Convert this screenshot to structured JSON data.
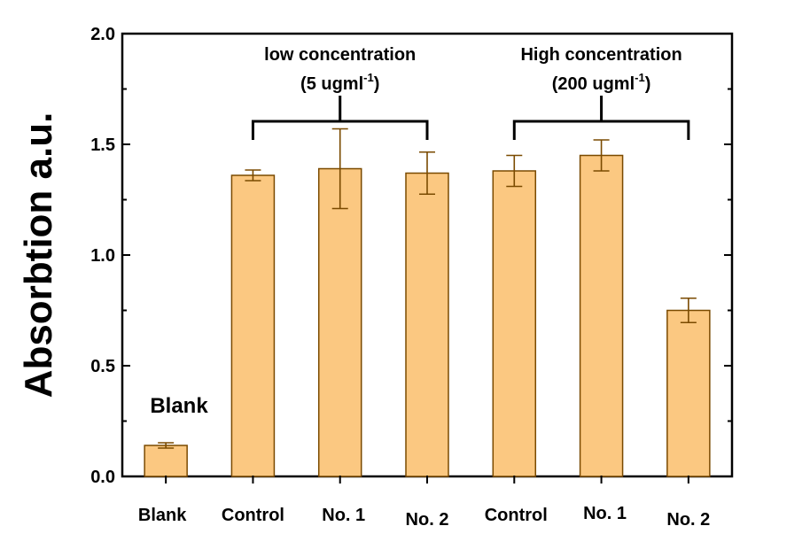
{
  "chart_data": {
    "type": "bar",
    "title": "",
    "xlabel": "",
    "ylabel": "Absorbtion a.u.",
    "ylim": [
      0,
      2.0
    ],
    "yticks": [
      "0.0",
      "0.5",
      "1.0",
      "1.5",
      "2.0"
    ],
    "grid": false,
    "legend": "none",
    "categories": [
      "Blank",
      "Control",
      "No. 1",
      "No. 2",
      "Control",
      "No. 1",
      "No. 2"
    ],
    "values": [
      0.14,
      1.36,
      1.39,
      1.37,
      1.38,
      1.45,
      0.75
    ],
    "errors": [
      0.012,
      0.024,
      0.18,
      0.095,
      0.07,
      0.07,
      0.055
    ],
    "bar_color": "#fbc881",
    "bar_edge_color": "#7a4a00",
    "annotations": {
      "blank": "Blank",
      "groups": [
        {
          "line1": "low concentration",
          "line2_prefix": "(5 ugml",
          "line2_sup": "-1",
          "line2_suffix": ")",
          "first_index": 1,
          "last_index": 3
        },
        {
          "line1": "High concentration",
          "line2_prefix": "(200 ugml",
          "line2_sup": "-1",
          "line2_suffix": ")",
          "first_index": 4,
          "last_index": 6
        }
      ]
    }
  }
}
